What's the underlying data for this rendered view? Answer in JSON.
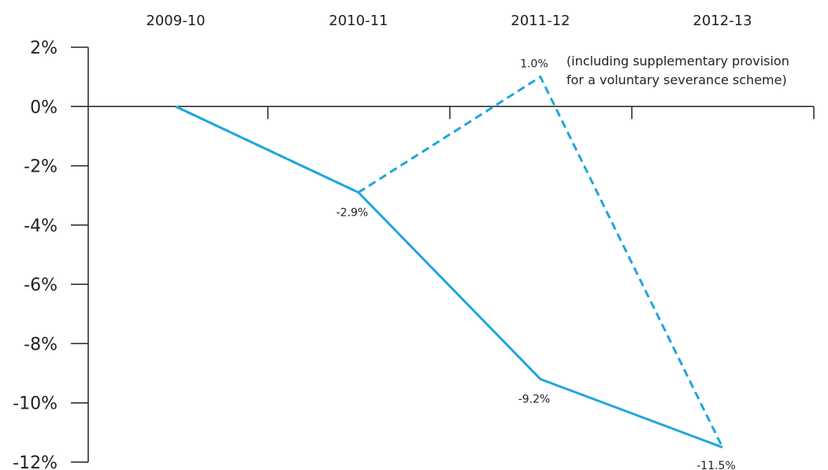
{
  "chart_data": {
    "type": "line",
    "categories": [
      "2009-10",
      "2010-11",
      "2011-12",
      "2012-13"
    ],
    "y_ticks": [
      "2%",
      "0%",
      "-2%",
      "-4%",
      "-6%",
      "-8%",
      "-10%",
      "-12%"
    ],
    "y_tick_values": [
      2,
      0,
      -2,
      -4,
      -6,
      -8,
      -10,
      -12
    ],
    "ylim": [
      -12,
      2
    ],
    "grid": false,
    "series": [
      {
        "style": "solid",
        "color": "#1ea6dc",
        "values": [
          0,
          -2.9,
          -9.2,
          -11.5
        ],
        "labels": [
          "",
          "-2.9%",
          "-9.2%",
          "-11.5%"
        ]
      },
      {
        "style": "dashed",
        "color": "#1ea6dc",
        "values": [
          0,
          -2.9,
          1.0,
          -11.5
        ],
        "labels": [
          "",
          "",
          "1.0%",
          ""
        ]
      }
    ],
    "annotation": {
      "line1": "(including supplementary provision",
      "line2": "for a voluntary severance scheme)"
    }
  }
}
